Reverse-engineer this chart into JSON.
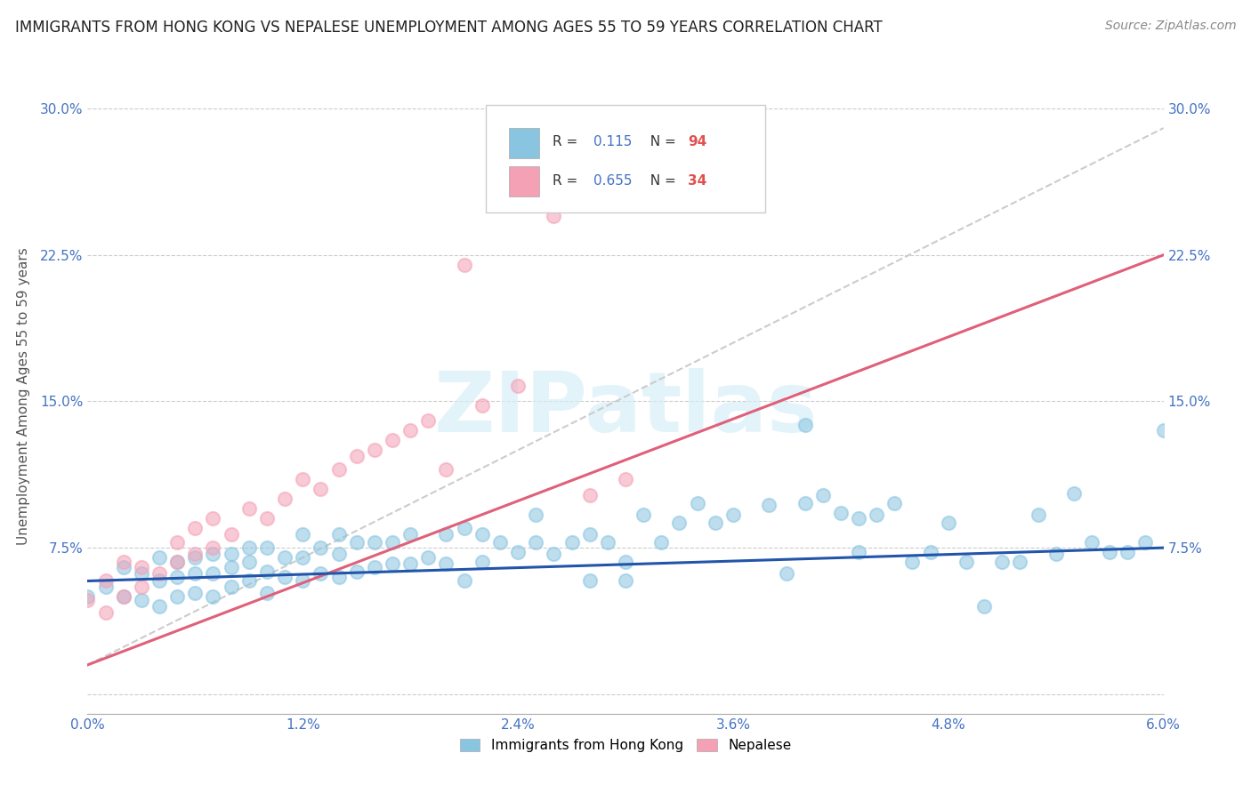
{
  "title": "IMMIGRANTS FROM HONG KONG VS NEPALESE UNEMPLOYMENT AMONG AGES 55 TO 59 YEARS CORRELATION CHART",
  "source": "Source: ZipAtlas.com",
  "ylabel_label": "Unemployment Among Ages 55 to 59 years",
  "legend_label_blue": "Immigrants from Hong Kong",
  "legend_label_pink": "Nepalese",
  "blue_color": "#89c4e1",
  "pink_color": "#f4a0b5",
  "blue_line_color": "#2255aa",
  "pink_line_color": "#e0607a",
  "gray_dash_color": "#cccccc",
  "watermark_text": "ZIPatlas",
  "xmin": 0.0,
  "xmax": 0.06,
  "ymin": -0.01,
  "ymax": 0.315,
  "yticks": [
    0.0,
    0.075,
    0.15,
    0.225,
    0.3
  ],
  "ytick_labels": [
    "",
    "7.5%",
    "15.0%",
    "22.5%",
    "30.0%"
  ],
  "xtick_positions": [
    0.0,
    0.012,
    0.024,
    0.036,
    0.048,
    0.06
  ],
  "xtick_labels": [
    "0.0%",
    "1.2%",
    "2.4%",
    "3.6%",
    "4.8%",
    "6.0%"
  ],
  "blue_scatter_x": [
    0.0,
    0.001,
    0.002,
    0.002,
    0.003,
    0.003,
    0.004,
    0.004,
    0.004,
    0.005,
    0.005,
    0.005,
    0.006,
    0.006,
    0.006,
    0.007,
    0.007,
    0.007,
    0.008,
    0.008,
    0.008,
    0.009,
    0.009,
    0.009,
    0.01,
    0.01,
    0.01,
    0.011,
    0.011,
    0.012,
    0.012,
    0.012,
    0.013,
    0.013,
    0.014,
    0.014,
    0.014,
    0.015,
    0.015,
    0.016,
    0.016,
    0.017,
    0.017,
    0.018,
    0.018,
    0.019,
    0.02,
    0.02,
    0.021,
    0.022,
    0.022,
    0.023,
    0.024,
    0.025,
    0.025,
    0.026,
    0.027,
    0.028,
    0.029,
    0.03,
    0.031,
    0.032,
    0.033,
    0.034,
    0.035,
    0.036,
    0.038,
    0.039,
    0.04,
    0.041,
    0.042,
    0.043,
    0.044,
    0.045,
    0.047,
    0.048,
    0.049,
    0.05,
    0.052,
    0.053,
    0.055,
    0.056,
    0.057,
    0.058,
    0.059,
    0.06,
    0.04,
    0.043,
    0.046,
    0.051,
    0.054,
    0.028,
    0.021,
    0.03
  ],
  "blue_scatter_y": [
    0.05,
    0.055,
    0.05,
    0.065,
    0.048,
    0.062,
    0.045,
    0.058,
    0.07,
    0.05,
    0.06,
    0.068,
    0.052,
    0.062,
    0.07,
    0.05,
    0.062,
    0.072,
    0.055,
    0.065,
    0.072,
    0.058,
    0.068,
    0.075,
    0.052,
    0.063,
    0.075,
    0.06,
    0.07,
    0.058,
    0.07,
    0.082,
    0.062,
    0.075,
    0.06,
    0.072,
    0.082,
    0.063,
    0.078,
    0.065,
    0.078,
    0.067,
    0.078,
    0.067,
    0.082,
    0.07,
    0.067,
    0.082,
    0.085,
    0.068,
    0.082,
    0.078,
    0.073,
    0.078,
    0.092,
    0.072,
    0.078,
    0.082,
    0.078,
    0.068,
    0.092,
    0.078,
    0.088,
    0.098,
    0.088,
    0.092,
    0.097,
    0.062,
    0.098,
    0.102,
    0.093,
    0.09,
    0.092,
    0.098,
    0.073,
    0.088,
    0.068,
    0.045,
    0.068,
    0.092,
    0.103,
    0.078,
    0.073,
    0.073,
    0.078,
    0.135,
    0.138,
    0.073,
    0.068,
    0.068,
    0.072,
    0.058,
    0.058,
    0.058
  ],
  "pink_scatter_x": [
    0.0,
    0.001,
    0.001,
    0.002,
    0.002,
    0.003,
    0.003,
    0.004,
    0.005,
    0.005,
    0.006,
    0.006,
    0.007,
    0.007,
    0.008,
    0.009,
    0.01,
    0.011,
    0.012,
    0.013,
    0.014,
    0.015,
    0.016,
    0.017,
    0.018,
    0.019,
    0.02,
    0.021,
    0.022,
    0.024,
    0.026,
    0.028,
    0.03,
    0.033
  ],
  "pink_scatter_y": [
    0.048,
    0.042,
    0.058,
    0.05,
    0.068,
    0.055,
    0.065,
    0.062,
    0.068,
    0.078,
    0.072,
    0.085,
    0.075,
    0.09,
    0.082,
    0.095,
    0.09,
    0.1,
    0.11,
    0.105,
    0.115,
    0.122,
    0.125,
    0.13,
    0.135,
    0.14,
    0.115,
    0.22,
    0.148,
    0.158,
    0.245,
    0.102,
    0.11,
    0.295
  ],
  "blue_trend_x": [
    0.0,
    0.06
  ],
  "blue_trend_y": [
    0.058,
    0.075
  ],
  "pink_trend_x": [
    0.0,
    0.06
  ],
  "pink_trend_y": [
    0.015,
    0.225
  ],
  "gray_trend_x": [
    0.0,
    0.06
  ],
  "gray_trend_y": [
    0.015,
    0.29
  ]
}
